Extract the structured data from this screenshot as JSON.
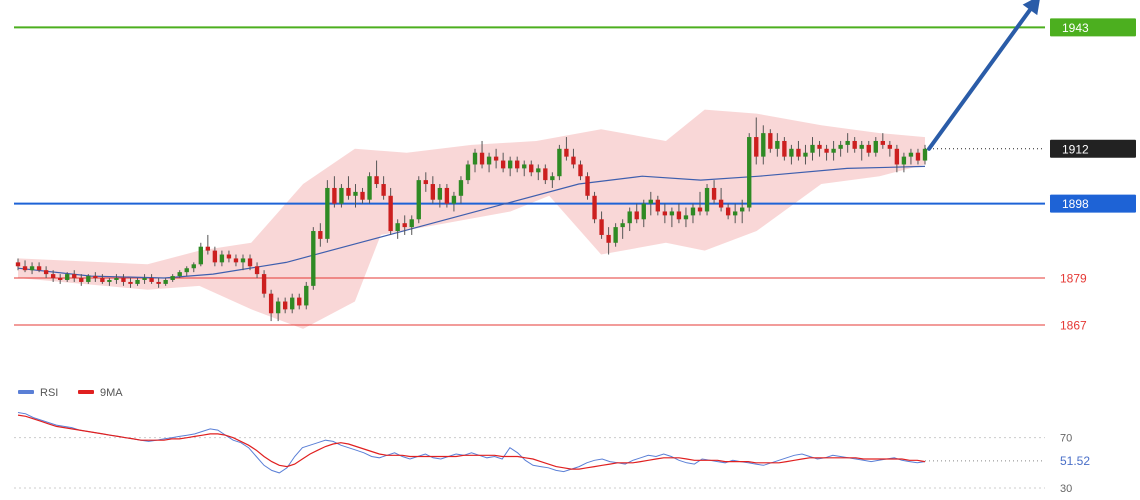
{
  "chart_data": {
    "type": "candlestick",
    "title": "",
    "price_panel": {
      "ylim": [
        1855,
        1950
      ],
      "last_price": 1912,
      "last_price_label": "1912",
      "levels": [
        {
          "value": 1943,
          "label": "1943",
          "color": "#4caf1f",
          "badge": true
        },
        {
          "value": 1912,
          "label": "1912",
          "color": "#222222",
          "badge": true,
          "dotted": true
        },
        {
          "value": 1898,
          "label": "1898",
          "color": "#1e63d6",
          "badge": true
        },
        {
          "value": 1879,
          "label": "1879",
          "color": "#e53935",
          "badge": false
        },
        {
          "value": 1867,
          "label": "1867",
          "color": "#e53935",
          "badge": false
        }
      ],
      "projection_arrow": {
        "from_price": 1912,
        "to_price": 1952,
        "color": "#2a5ca8"
      },
      "candles": [
        [
          1883,
          1884,
          1881,
          1882
        ],
        [
          1882,
          1883.5,
          1880.5,
          1881
        ],
        [
          1881,
          1883,
          1880,
          1882
        ],
        [
          1882,
          1883,
          1880.5,
          1881
        ],
        [
          1881,
          1882,
          1879,
          1880
        ],
        [
          1880,
          1881,
          1878,
          1879
        ],
        [
          1879,
          1880,
          1877.5,
          1878.5
        ],
        [
          1878.5,
          1880.5,
          1878,
          1880
        ],
        [
          1880,
          1881,
          1878,
          1879
        ],
        [
          1879,
          1880,
          1877,
          1878
        ],
        [
          1878,
          1880,
          1877.5,
          1879.5
        ],
        [
          1879.5,
          1880.5,
          1878,
          1879
        ],
        [
          1879,
          1880,
          1877.5,
          1878
        ],
        [
          1878,
          1879,
          1877,
          1878.5
        ],
        [
          1878.5,
          1880,
          1877.5,
          1879
        ],
        [
          1879,
          1880,
          1877,
          1878
        ],
        [
          1878,
          1879,
          1876.5,
          1877.5
        ],
        [
          1877.5,
          1879,
          1877,
          1878.5
        ],
        [
          1878.5,
          1880,
          1877.5,
          1879
        ],
        [
          1879,
          1880,
          1877.5,
          1878
        ],
        [
          1878,
          1879,
          1876.5,
          1877.5
        ],
        [
          1877.5,
          1879,
          1877,
          1878.5
        ],
        [
          1878.5,
          1880,
          1878,
          1879.5
        ],
        [
          1879.5,
          1881,
          1879,
          1880.5
        ],
        [
          1880.5,
          1882,
          1879.5,
          1881.5
        ],
        [
          1881.5,
          1883,
          1880.5,
          1882.5
        ],
        [
          1882.5,
          1888,
          1882,
          1887
        ],
        [
          1887,
          1890,
          1885,
          1886
        ],
        [
          1886,
          1887,
          1882,
          1883
        ],
        [
          1883,
          1886,
          1882,
          1885
        ],
        [
          1885,
          1886,
          1883,
          1884
        ],
        [
          1884,
          1885,
          1882,
          1883
        ],
        [
          1883,
          1885,
          1881,
          1884
        ],
        [
          1884,
          1885,
          1881,
          1882
        ],
        [
          1882,
          1883,
          1879,
          1880
        ],
        [
          1880,
          1881,
          1874,
          1875
        ],
        [
          1875,
          1876,
          1868,
          1870
        ],
        [
          1870,
          1874,
          1868,
          1873
        ],
        [
          1873,
          1874,
          1870,
          1871
        ],
        [
          1871,
          1875,
          1870,
          1874
        ],
        [
          1874,
          1875,
          1871,
          1872
        ],
        [
          1872,
          1878,
          1871,
          1877
        ],
        [
          1877,
          1892,
          1876,
          1891
        ],
        [
          1891,
          1893,
          1887,
          1889
        ],
        [
          1889,
          1904,
          1888,
          1902
        ],
        [
          1902,
          1905,
          1897,
          1898
        ],
        [
          1898,
          1903,
          1897,
          1902
        ],
        [
          1902,
          1905,
          1899,
          1900
        ],
        [
          1900,
          1903,
          1897,
          1901
        ],
        [
          1901,
          1902,
          1898,
          1899
        ],
        [
          1899,
          1906,
          1898,
          1905
        ],
        [
          1905,
          1909,
          1902,
          1903
        ],
        [
          1903,
          1905,
          1899,
          1900
        ],
        [
          1900,
          1902,
          1890,
          1891
        ],
        [
          1891,
          1894,
          1889,
          1893
        ],
        [
          1893,
          1895,
          1890,
          1892
        ],
        [
          1892,
          1895,
          1890,
          1894
        ],
        [
          1894,
          1905,
          1893,
          1904
        ],
        [
          1904,
          1906,
          1901,
          1903
        ],
        [
          1903,
          1905,
          1898,
          1899
        ],
        [
          1899,
          1903,
          1897,
          1902
        ],
        [
          1902,
          1903,
          1897,
          1898
        ],
        [
          1898,
          1901,
          1896,
          1900
        ],
        [
          1900,
          1905,
          1898,
          1904
        ],
        [
          1904,
          1909,
          1903,
          1908
        ],
        [
          1908,
          1912,
          1906,
          1911
        ],
        [
          1911,
          1914,
          1907,
          1908
        ],
        [
          1908,
          1911,
          1906,
          1910
        ],
        [
          1910,
          1912,
          1907,
          1909
        ],
        [
          1909,
          1911,
          1906,
          1907
        ],
        [
          1907,
          1910,
          1905,
          1909
        ],
        [
          1909,
          1910,
          1906,
          1907
        ],
        [
          1907,
          1909,
          1905,
          1908
        ],
        [
          1908,
          1909,
          1905,
          1906
        ],
        [
          1906,
          1908,
          1904,
          1907
        ],
        [
          1907,
          1908,
          1903,
          1904
        ],
        [
          1904,
          1906,
          1902,
          1905
        ],
        [
          1905,
          1913,
          1904,
          1912
        ],
        [
          1912,
          1915,
          1909,
          1910
        ],
        [
          1910,
          1912,
          1907,
          1908
        ],
        [
          1908,
          1909,
          1904,
          1905
        ],
        [
          1905,
          1906,
          1899,
          1900
        ],
        [
          1900,
          1901,
          1893,
          1894
        ],
        [
          1894,
          1896,
          1889,
          1890
        ],
        [
          1890,
          1892,
          1885,
          1888
        ],
        [
          1888,
          1893,
          1887,
          1892
        ],
        [
          1892,
          1894,
          1889,
          1893
        ],
        [
          1893,
          1897,
          1891,
          1896
        ],
        [
          1896,
          1898,
          1893,
          1894
        ],
        [
          1894,
          1899,
          1892,
          1898
        ],
        [
          1898,
          1901,
          1895,
          1899
        ],
        [
          1899,
          1900,
          1895,
          1896
        ],
        [
          1896,
          1898,
          1893,
          1895
        ],
        [
          1895,
          1897,
          1892,
          1896
        ],
        [
          1896,
          1898,
          1893,
          1894
        ],
        [
          1894,
          1897,
          1892,
          1895
        ],
        [
          1895,
          1898,
          1893,
          1897
        ],
        [
          1897,
          1901,
          1895,
          1896
        ],
        [
          1896,
          1903,
          1895,
          1902
        ],
        [
          1902,
          1904,
          1898,
          1899
        ],
        [
          1899,
          1902,
          1896,
          1897
        ],
        [
          1897,
          1898,
          1894,
          1895
        ],
        [
          1895,
          1898,
          1893,
          1896
        ],
        [
          1896,
          1899,
          1893,
          1897
        ],
        [
          1897,
          1916,
          1896,
          1915
        ],
        [
          1915,
          1920,
          1908,
          1910
        ],
        [
          1910,
          1918,
          1908,
          1916
        ],
        [
          1916,
          1917,
          1911,
          1912
        ],
        [
          1912,
          1916,
          1910,
          1914
        ],
        [
          1914,
          1915,
          1909,
          1910
        ],
        [
          1910,
          1913,
          1908,
          1912
        ],
        [
          1912,
          1914,
          1909,
          1910
        ],
        [
          1910,
          1913,
          1908,
          1911
        ],
        [
          1911,
          1915,
          1909,
          1913
        ],
        [
          1913,
          1914,
          1910,
          1912
        ],
        [
          1912,
          1913,
          1909,
          1911
        ],
        [
          1911,
          1914,
          1909,
          1912
        ],
        [
          1912,
          1914,
          1910,
          1913
        ],
        [
          1913,
          1916,
          1911,
          1914
        ],
        [
          1914,
          1915,
          1911,
          1912
        ],
        [
          1912,
          1914,
          1909,
          1913
        ],
        [
          1913,
          1914,
          1910,
          1911
        ],
        [
          1911,
          1915,
          1910,
          1914
        ],
        [
          1914,
          1916,
          1912,
          1913
        ],
        [
          1913,
          1914,
          1910,
          1912
        ],
        [
          1912,
          1913,
          1906,
          1908
        ],
        [
          1908,
          1911,
          1906,
          1910
        ],
        [
          1910,
          1912,
          1908,
          1911
        ],
        [
          1911,
          1912,
          1908,
          1909
        ],
        [
          1909,
          1913,
          1908,
          1912
        ]
      ],
      "ma_slow": [
        [
          0,
          1881.5
        ],
        [
          15,
          1879.5
        ],
        [
          30,
          1879
        ],
        [
          40,
          1880
        ],
        [
          55,
          1883
        ],
        [
          70,
          1888
        ],
        [
          85,
          1893
        ],
        [
          100,
          1898
        ],
        [
          115,
          1903
        ],
        [
          128,
          1905
        ],
        [
          140,
          1904
        ],
        [
          152,
          1905
        ],
        [
          170,
          1907
        ],
        [
          186,
          1907.5
        ]
      ],
      "bollinger": {
        "upper": [
          [
            0,
            1884
          ],
          [
            20,
            1882.5
          ],
          [
            28,
            1886
          ],
          [
            36,
            1888
          ],
          [
            44,
            1903
          ],
          [
            52,
            1912
          ],
          [
            60,
            1911
          ],
          [
            70,
            1913
          ],
          [
            80,
            1914
          ],
          [
            90,
            1917
          ],
          [
            100,
            1914
          ],
          [
            106,
            1922
          ],
          [
            114,
            1921
          ],
          [
            124,
            1918
          ],
          [
            133,
            1916
          ],
          [
            140,
            1915
          ]
        ],
        "lower": [
          [
            0,
            1879
          ],
          [
            20,
            1876
          ],
          [
            28,
            1877
          ],
          [
            36,
            1871
          ],
          [
            44,
            1866
          ],
          [
            52,
            1873
          ],
          [
            56,
            1890
          ],
          [
            66,
            1893
          ],
          [
            76,
            1896
          ],
          [
            82,
            1900
          ],
          [
            90,
            1885
          ],
          [
            100,
            1888
          ],
          [
            106,
            1886
          ],
          [
            114,
            1891
          ],
          [
            124,
            1903
          ],
          [
            133,
            1905
          ],
          [
            140,
            1908
          ]
        ]
      }
    },
    "rsi_panel": {
      "legend": [
        {
          "name": "RSI",
          "color": "#5a7fd6"
        },
        {
          "name": "9MA",
          "color": "#e02020"
        }
      ],
      "ylim": [
        22,
        96
      ],
      "levels": [
        70,
        30
      ],
      "level_labels": [
        "70",
        "30"
      ],
      "last_value": 51.52,
      "last_value_label": "51.52",
      "rsi": [
        90,
        89,
        86,
        84,
        82,
        80,
        79,
        78,
        76,
        75,
        74,
        73,
        72,
        71,
        70,
        69,
        68,
        67,
        68,
        69,
        70,
        71,
        72,
        73,
        75,
        77,
        76,
        72,
        68,
        66,
        62,
        55,
        48,
        44,
        42,
        46,
        55,
        62,
        64,
        66,
        68,
        67,
        64,
        62,
        60,
        58,
        55,
        54,
        56,
        58,
        55,
        53,
        55,
        57,
        54,
        53,
        55,
        57,
        56,
        58,
        56,
        54,
        55,
        53,
        62,
        58,
        52,
        48,
        47,
        46,
        44,
        43,
        45,
        47,
        50,
        52,
        53,
        51,
        50,
        49,
        52,
        54,
        56,
        55,
        57,
        55,
        52,
        50,
        49,
        53,
        52,
        51,
        50,
        52,
        51,
        50,
        49,
        48,
        50,
        52,
        54,
        56,
        57,
        55,
        53,
        54,
        56,
        55,
        54,
        53,
        52,
        51,
        52,
        53,
        54,
        52,
        51,
        50,
        51
      ],
      "ma9": [
        88,
        87,
        85,
        83,
        81,
        79,
        78,
        77,
        76,
        75,
        74,
        73,
        72,
        71,
        70,
        69,
        68,
        68,
        68,
        68,
        69,
        69,
        70,
        71,
        72,
        73,
        73,
        72,
        70,
        67,
        64,
        60,
        55,
        51,
        48,
        47,
        49,
        53,
        57,
        60,
        63,
        65,
        66,
        65,
        63,
        61,
        59,
        57,
        56,
        56,
        56,
        55,
        55,
        55,
        55,
        55,
        55,
        55,
        56,
        56,
        56,
        56,
        56,
        55,
        55,
        55,
        54,
        53,
        51,
        49,
        47,
        46,
        45,
        45,
        46,
        47,
        48,
        49,
        50,
        50,
        50,
        51,
        52,
        53,
        54,
        54,
        54,
        53,
        52,
        52,
        52,
        52,
        51,
        51,
        51,
        51,
        50,
        50,
        50,
        50,
        51,
        52,
        53,
        54,
        54,
        54,
        54,
        54,
        54,
        54,
        53,
        53,
        53,
        53,
        53,
        53,
        52,
        52,
        51
      ]
    }
  }
}
